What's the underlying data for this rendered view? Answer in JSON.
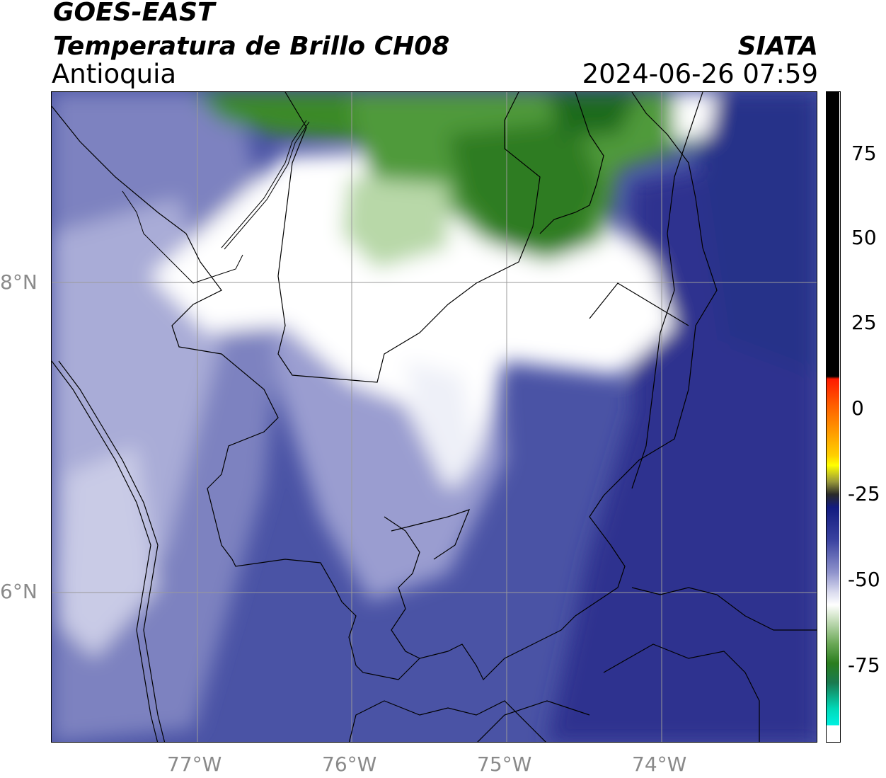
{
  "header": {
    "satellite": "GOES-EAST",
    "product": "Temperatura de Brillo CH08",
    "region": "Antioquia",
    "organization": "SIATA",
    "datetime": "2024-06-26 07:59"
  },
  "map": {
    "lon_ticks": [
      "77°W",
      "76°W",
      "75°W",
      "74°W"
    ],
    "lat_ticks": [
      "8°N",
      "6°N"
    ],
    "extent": {
      "lon_min": -77.95,
      "lon_max": -73.0,
      "lat_min": 5.03,
      "lat_max": 9.23
    }
  },
  "colorbar": {
    "ticks": [
      "75",
      "50",
      "25",
      "0",
      "-25",
      "-50",
      "-75"
    ],
    "range": [
      -92,
      92
    ],
    "colors": {
      "black": "#000000",
      "red": "#ff1a00",
      "orange": "#ff9500",
      "yellow": "#ffff00",
      "dark_blue": "#121b80",
      "mid_blue": "#4a53a5",
      "light_lavender": "#c9cbe6",
      "white": "#ffffff",
      "green": "#3a8a26",
      "dark_green": "#1f6b1a",
      "teal": "#00d9b8",
      "cyan": "#00f0e0"
    }
  }
}
